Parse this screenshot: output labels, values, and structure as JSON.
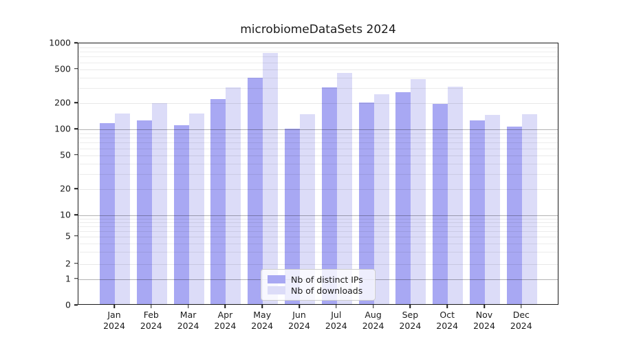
{
  "chart_data": {
    "type": "bar",
    "title": "microbiomeDataSets 2024",
    "year": "2024",
    "categories": [
      "Jan",
      "Feb",
      "Mar",
      "Apr",
      "May",
      "Jun",
      "Jul",
      "Aug",
      "Sep",
      "Oct",
      "Nov",
      "Dec"
    ],
    "series": [
      {
        "name": "Nb of distinct IPs",
        "color": "#a8a8f3",
        "values": [
          114,
          123,
          107,
          215,
          385,
          98,
          295,
          198,
          262,
          190,
          122,
          104
        ]
      },
      {
        "name": "Nb of downloads",
        "color": "#dcdcf8",
        "values": [
          146,
          193,
          147,
          298,
          750,
          144,
          440,
          245,
          372,
          303,
          143,
          145
        ]
      }
    ],
    "y_ticks": [
      0,
      1,
      2,
      5,
      10,
      20,
      50,
      100,
      200,
      500,
      1000
    ],
    "y_scale": "symlog",
    "ylim": [
      0,
      1000
    ],
    "grid": true,
    "legend_position": "lower center"
  }
}
